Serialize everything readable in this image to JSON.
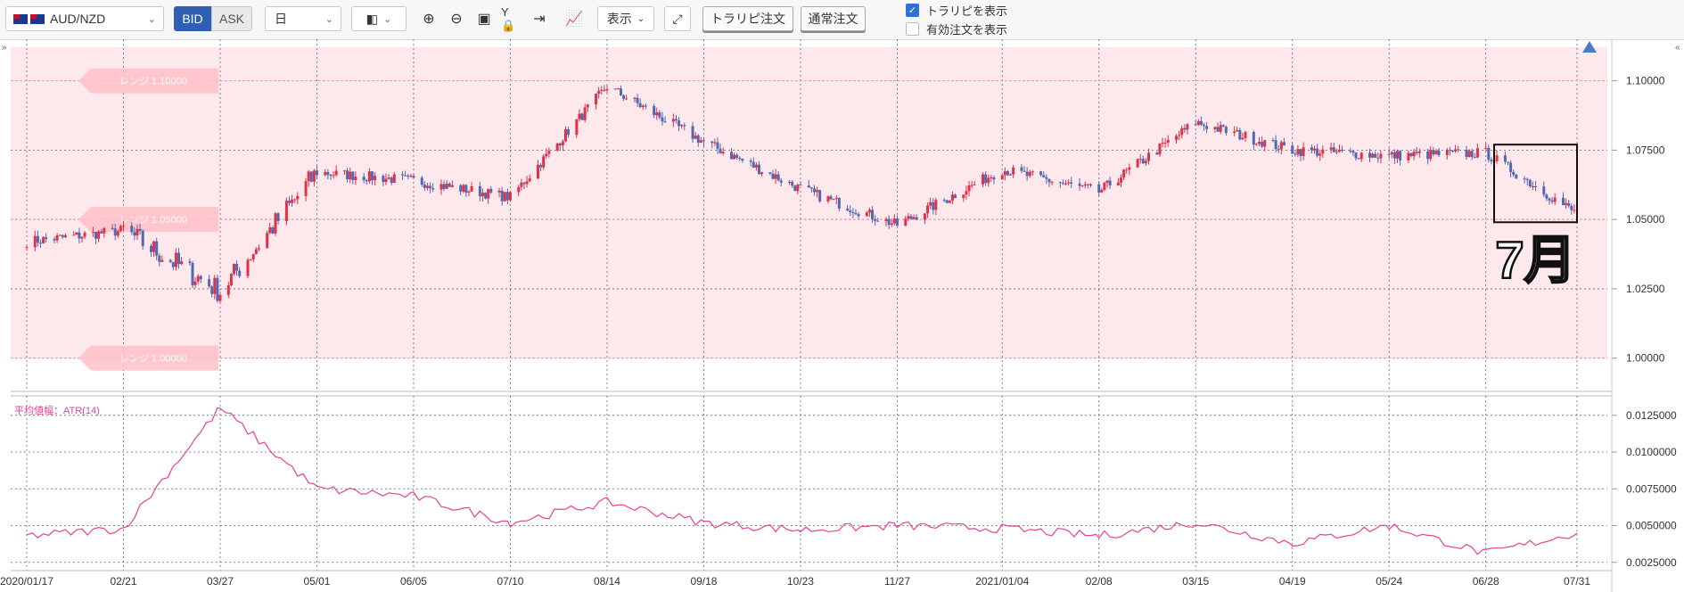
{
  "toolbar": {
    "pair": "AUD/NZD",
    "bid": "BID",
    "ask": "ASK",
    "period": "日",
    "display": "表示",
    "trap_repeat_order": "トラリピ注文",
    "normal_order": "通常注文",
    "show_trap_repeat": "トラリピを表示",
    "show_valid_orders": "有効注文を表示"
  },
  "colors": {
    "up": "#e0314b",
    "down": "#5268b3",
    "range_fill": "#fde9ec",
    "atr_line": "#e8418f",
    "range_tag": "#ffc0c8"
  },
  "chart_data": [
    {
      "type": "candlestick",
      "symbol": "AUD/NZD",
      "timeframe": "日",
      "y_ticks": [
        "1.10000",
        "1.07500",
        "1.05000",
        "1.02500",
        "1.00000"
      ],
      "ylim": [
        0.988,
        1.115
      ],
      "x_ticks": [
        "2020/01/17",
        "02/21",
        "03/27",
        "05/01",
        "06/05",
        "07/10",
        "08/14",
        "09/18",
        "10/23",
        "11/27",
        "2021/01/04",
        "02/08",
        "03/15",
        "04/19",
        "05/24",
        "06/28",
        "07/31"
      ],
      "x_tick_dates": [
        "2020-01-17",
        "2020-02-21",
        "2020-03-27",
        "2020-05-01",
        "2020-06-05",
        "2020-07-10",
        "2020-08-14",
        "2020-09-18",
        "2020-10-23",
        "2020-11-27",
        "2021-01-04",
        "2021-02-08",
        "2021-03-15",
        "2021-04-19",
        "2021-05-24",
        "2021-06-28",
        "2021-07-31"
      ],
      "range_band": [
        1.0,
        1.1
      ],
      "range_labels": [
        {
          "text": "レンジ 1.10000",
          "value": 1.1
        },
        {
          "text": "レンジ 1.05000",
          "value": 1.05
        },
        {
          "text": "レンジ 1.00000",
          "value": 1.0
        }
      ],
      "closes_by_tick": [
        1.042,
        1.046,
        1.024,
        1.067,
        1.064,
        1.058,
        1.098,
        1.078,
        1.061,
        1.048,
        1.068,
        1.06,
        1.085,
        1.075,
        1.073,
        1.074,
        1.052
      ],
      "annotation": {
        "text": "7月",
        "box_from": "2021-07-01",
        "box_to": "2021-07-31",
        "box_high": 1.077,
        "box_low": 1.049
      },
      "current_marker": "up-triangle"
    },
    {
      "type": "line",
      "title": "平均値幅：ATR(14)",
      "y_ticks": [
        "0.0125000",
        "0.0100000",
        "0.0075000",
        "0.0050000",
        "0.0025000"
      ],
      "ylim": [
        0.002,
        0.0137
      ],
      "x_tick_dates": [
        "2020-01-17",
        "2020-02-21",
        "2020-03-27",
        "2020-05-01",
        "2020-06-05",
        "2020-07-10",
        "2020-08-14",
        "2020-09-18",
        "2020-10-23",
        "2020-11-27",
        "2021-01-04",
        "2021-02-08",
        "2021-03-15",
        "2021-04-19",
        "2021-05-24",
        "2021-06-28",
        "2021-07-31"
      ],
      "values_by_tick": [
        0.0043,
        0.0048,
        0.013,
        0.0075,
        0.007,
        0.0052,
        0.0066,
        0.0052,
        0.0047,
        0.005,
        0.0048,
        0.0043,
        0.0052,
        0.0038,
        0.005,
        0.0031,
        0.0045
      ]
    }
  ]
}
